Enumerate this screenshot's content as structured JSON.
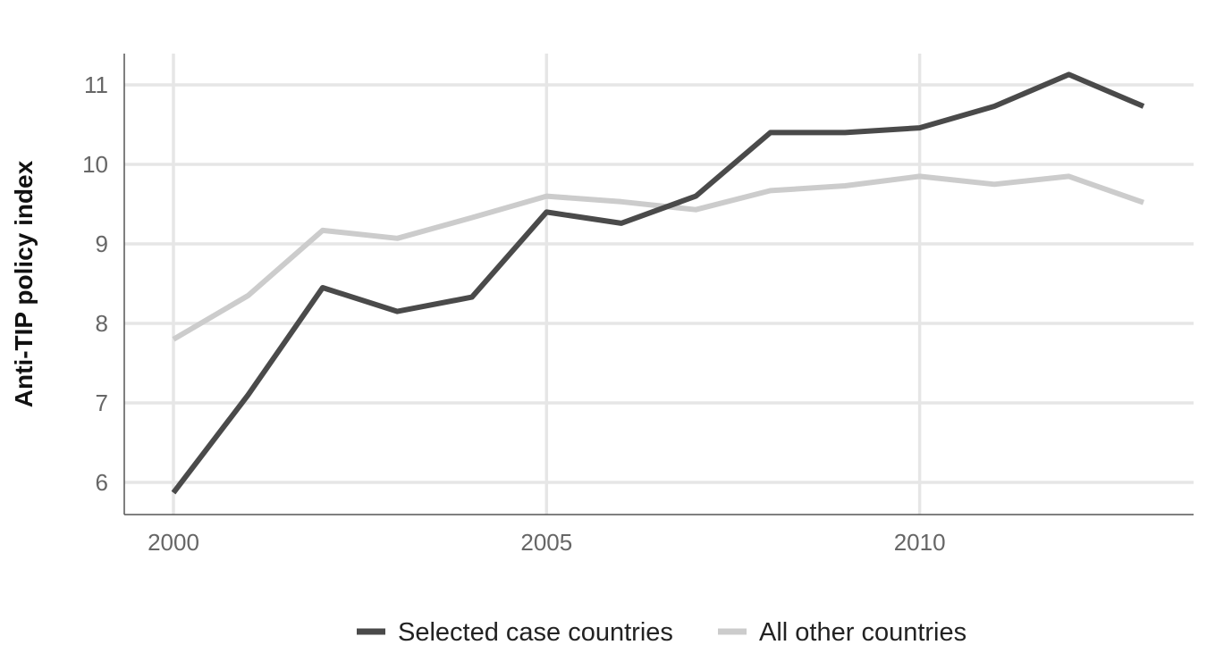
{
  "chart_data": {
    "type": "line",
    "title": "",
    "xlabel": "",
    "ylabel": "Anti-TIP policy index",
    "x": [
      2000,
      2001,
      2002,
      2003,
      2004,
      2005,
      2006,
      2007,
      2008,
      2009,
      2010,
      2011,
      2012,
      2013
    ],
    "x_ticks": [
      2000,
      2005,
      2010
    ],
    "y_ticks": [
      6,
      7,
      8,
      9,
      10,
      11
    ],
    "xlim": [
      2000,
      2013
    ],
    "ylim": [
      5.6,
      11.4
    ],
    "grid": true,
    "legend_position": "bottom",
    "series": [
      {
        "name": "Selected case countries",
        "color": "#4a4a4a",
        "values": [
          5.87,
          7.1,
          8.45,
          8.15,
          8.33,
          9.4,
          9.26,
          9.6,
          10.4,
          10.4,
          10.46,
          10.73,
          11.13,
          10.73
        ]
      },
      {
        "name": "All other countries",
        "color": "#cccccc",
        "values": [
          7.8,
          8.35,
          9.17,
          9.07,
          9.33,
          9.6,
          9.53,
          9.43,
          9.67,
          9.73,
          9.85,
          9.75,
          9.85,
          9.52
        ]
      }
    ]
  }
}
